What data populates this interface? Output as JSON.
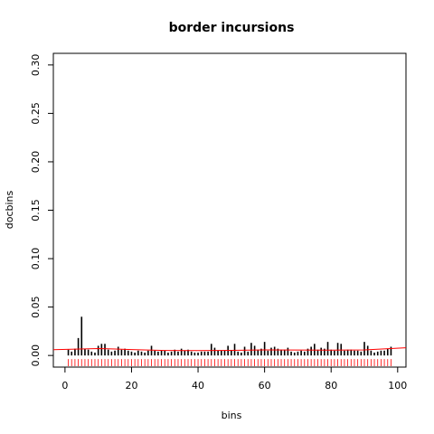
{
  "chart_data": {
    "type": "bar",
    "title": "border incursions",
    "xlabel": "bins",
    "ylabel": "docbins",
    "xlim": [
      -3.5,
      102.5
    ],
    "ylim": [
      -0.012,
      0.312
    ],
    "xticks": [
      0,
      20,
      40,
      60,
      80,
      100
    ],
    "yticks": [
      0.0,
      0.05,
      0.1,
      0.15,
      0.2,
      0.25,
      0.3
    ],
    "ytick_labels": [
      "0.00",
      "0.05",
      "0.10",
      "0.15",
      "0.20",
      "0.25",
      "0.30"
    ],
    "grid": false,
    "series_color": "#000000",
    "x": [
      1,
      2,
      3,
      4,
      5,
      6,
      7,
      8,
      9,
      10,
      11,
      12,
      13,
      14,
      15,
      16,
      17,
      18,
      19,
      20,
      21,
      22,
      23,
      24,
      25,
      26,
      27,
      28,
      29,
      30,
      31,
      32,
      33,
      34,
      35,
      36,
      37,
      38,
      39,
      40,
      41,
      42,
      43,
      44,
      45,
      46,
      47,
      48,
      49,
      50,
      51,
      52,
      53,
      54,
      55,
      56,
      57,
      58,
      59,
      60,
      61,
      62,
      63,
      64,
      65,
      66,
      67,
      68,
      69,
      70,
      71,
      72,
      73,
      74,
      75,
      76,
      77,
      78,
      79,
      80,
      81,
      82,
      83,
      84,
      85,
      86,
      87,
      88,
      89,
      90,
      91,
      92,
      93,
      94,
      95,
      96,
      97,
      98
    ],
    "values": [
      0.006,
      0.004,
      0.007,
      0.018,
      0.04,
      0.007,
      0.006,
      0.004,
      0.003,
      0.01,
      0.012,
      0.012,
      0.006,
      0.004,
      0.005,
      0.009,
      0.006,
      0.007,
      0.005,
      0.004,
      0.003,
      0.005,
      0.004,
      0.003,
      0.005,
      0.01,
      0.005,
      0.004,
      0.005,
      0.005,
      0.003,
      0.004,
      0.006,
      0.004,
      0.007,
      0.005,
      0.006,
      0.004,
      0.003,
      0.003,
      0.004,
      0.004,
      0.004,
      0.012,
      0.008,
      0.005,
      0.005,
      0.005,
      0.01,
      0.005,
      0.012,
      0.004,
      0.003,
      0.009,
      0.004,
      0.013,
      0.01,
      0.006,
      0.007,
      0.014,
      0.005,
      0.008,
      0.009,
      0.007,
      0.006,
      0.006,
      0.008,
      0.004,
      0.003,
      0.004,
      0.005,
      0.004,
      0.007,
      0.009,
      0.012,
      0.006,
      0.008,
      0.007,
      0.014,
      0.006,
      0.005,
      0.013,
      0.012,
      0.005,
      0.006,
      0.006,
      0.005,
      0.005,
      0.004,
      0.014,
      0.01,
      0.005,
      0.003,
      0.004,
      0.005,
      0.005,
      0.007,
      0.009
    ],
    "rug": {
      "color": "#ff0000",
      "x": [
        1,
        2,
        3,
        4,
        5,
        6,
        7,
        8,
        9,
        10,
        11,
        12,
        13,
        14,
        15,
        16,
        17,
        18,
        19,
        20,
        21,
        22,
        23,
        24,
        25,
        26,
        27,
        28,
        29,
        30,
        31,
        32,
        33,
        34,
        35,
        36,
        37,
        38,
        39,
        40,
        41,
        42,
        43,
        44,
        45,
        46,
        47,
        48,
        49,
        50,
        51,
        52,
        53,
        54,
        55,
        56,
        57,
        58,
        59,
        60,
        61,
        62,
        63,
        64,
        65,
        66,
        67,
        68,
        69,
        70,
        71,
        72,
        73,
        74,
        75,
        76,
        77,
        78,
        79,
        80,
        81,
        82,
        83,
        84,
        85,
        86,
        87,
        88,
        89,
        90,
        91,
        92,
        93,
        94,
        95,
        96,
        97,
        98
      ]
    },
    "smooth_line": {
      "color": "#ff0000",
      "x": [
        -3.5,
        10,
        20,
        30,
        40,
        50,
        60,
        70,
        80,
        90,
        102.5
      ],
      "y": [
        0.006,
        0.0072,
        0.0061,
        0.0052,
        0.005,
        0.0053,
        0.0057,
        0.0056,
        0.0055,
        0.0058,
        0.008
      ]
    }
  }
}
